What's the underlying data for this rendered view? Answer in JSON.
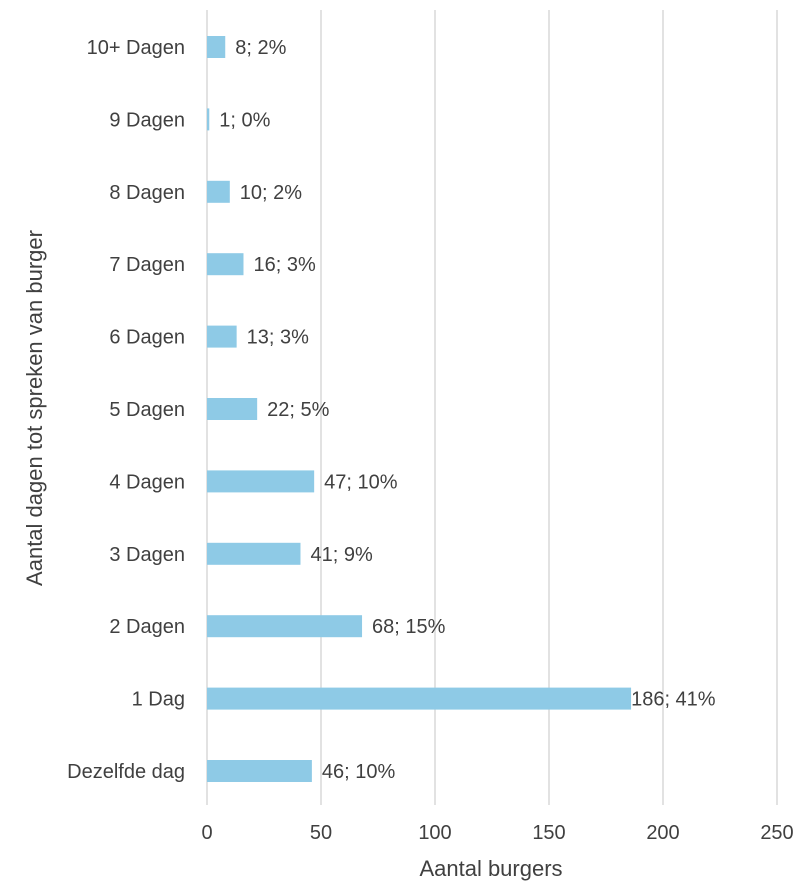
{
  "chart_data": {
    "type": "bar",
    "orientation": "horizontal",
    "categories": [
      "10+ Dagen",
      "9 Dagen",
      "8 Dagen",
      "7 Dagen",
      "6 Dagen",
      "5 Dagen",
      "4 Dagen",
      "3 Dagen",
      "2 Dagen",
      "1 Dag",
      "Dezelfde dag"
    ],
    "values": [
      8,
      1,
      10,
      16,
      13,
      22,
      47,
      41,
      68,
      186,
      46
    ],
    "data_labels": [
      "8; 2%",
      "1; 0%",
      "10; 2%",
      "16; 3%",
      "13; 3%",
      "22; 5%",
      "47; 10%",
      "41; 9%",
      "68; 15%",
      "186; 41%",
      "46; 10%"
    ],
    "xlabel": "Aantal burgers",
    "ylabel": "Aantal dagen tot spreken van burger",
    "xlim": [
      0,
      250
    ],
    "xticks": [
      0,
      50,
      100,
      150,
      200,
      250
    ],
    "grid": "vertical",
    "legend": "none",
    "bar_color": "#8ecae6"
  }
}
